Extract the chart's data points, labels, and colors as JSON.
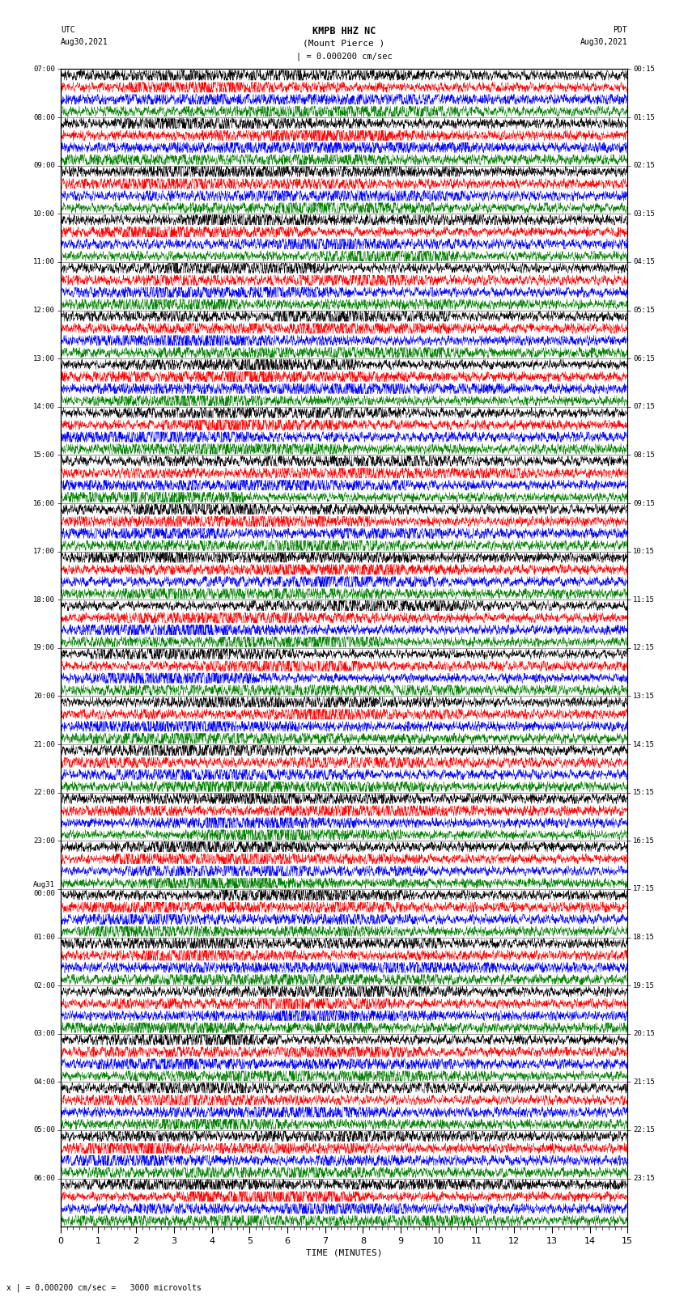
{
  "title_line1": "KMPB HHZ NC",
  "title_line2": "(Mount Pierce )",
  "scale_text": "| = 0.000200 cm/sec",
  "bottom_label": "x | = 0.000200 cm/sec =   3000 microvolts",
  "xlabel": "TIME (MINUTES)",
  "left_header_line1": "UTC",
  "left_header_line2": "Aug30,2021",
  "right_header_line1": "PDT",
  "right_header_line2": "Aug30,2021",
  "utc_times": [
    "07:00",
    "08:00",
    "09:00",
    "10:00",
    "11:00",
    "12:00",
    "13:00",
    "14:00",
    "15:00",
    "16:00",
    "17:00",
    "18:00",
    "19:00",
    "20:00",
    "21:00",
    "22:00",
    "23:00",
    "Aug31\n00:00",
    "01:00",
    "02:00",
    "03:00",
    "04:00",
    "05:00",
    "06:00"
  ],
  "pdt_times": [
    "00:15",
    "01:15",
    "02:15",
    "03:15",
    "04:15",
    "05:15",
    "06:15",
    "07:15",
    "08:15",
    "09:15",
    "10:15",
    "11:15",
    "12:15",
    "13:15",
    "14:15",
    "15:15",
    "16:15",
    "17:15",
    "18:15",
    "19:15",
    "20:15",
    "21:15",
    "22:15",
    "23:15"
  ],
  "n_traces": 24,
  "n_rows_per_trace": 4,
  "trace_colors": [
    "#000000",
    "#ff0000",
    "#0000ff",
    "#008000"
  ],
  "baseline_color": "#000000",
  "bg_color": "#ffffff",
  "fig_width": 8.5,
  "fig_height": 16.13,
  "dpi": 100,
  "minutes": 15,
  "samples_per_minute": 200,
  "noise_seed": 42
}
